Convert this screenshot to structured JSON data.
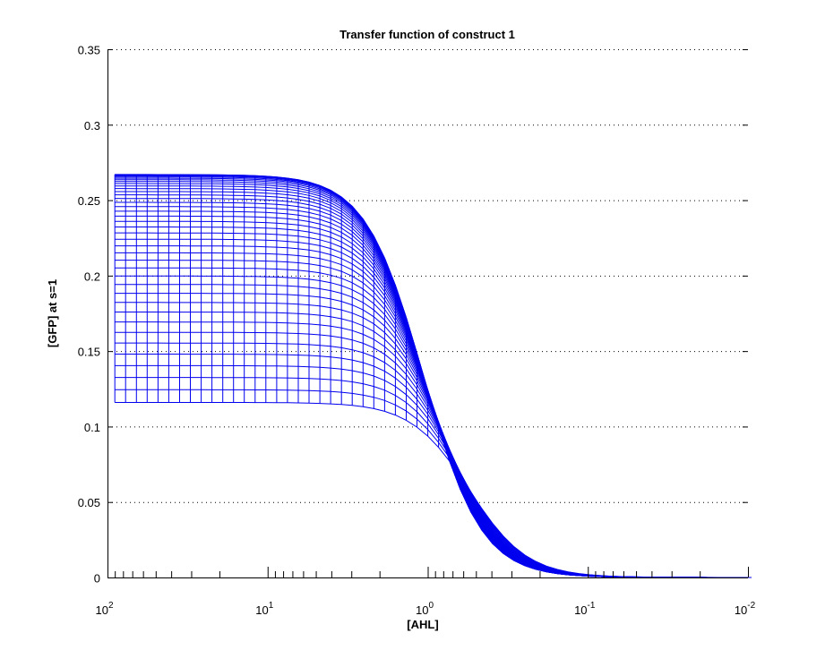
{
  "chart_data": {
    "type": "line",
    "title": "Transfer function of construct 1",
    "xlabel": "[AHL]",
    "ylabel": "[GFP] at s=1",
    "x_scale": "log",
    "x_reversed": true,
    "xlim": [
      100,
      0.01
    ],
    "ylim": [
      0,
      0.35
    ],
    "x_ticks": [
      {
        "value": 100,
        "base": "10",
        "exp": "2"
      },
      {
        "value": 10,
        "base": "10",
        "exp": "1"
      },
      {
        "value": 1,
        "base": "10",
        "exp": "0"
      },
      {
        "value": 0.1,
        "base": "10",
        "exp": "-1"
      },
      {
        "value": 0.01,
        "base": "10",
        "exp": "-2"
      }
    ],
    "y_ticks": [
      "0",
      "0.05",
      "0.1",
      "0.15",
      "0.2",
      "0.25",
      "0.3",
      "0.35"
    ],
    "y_tick_values": [
      0,
      0.05,
      0.1,
      0.15,
      0.2,
      0.25,
      0.3,
      0.35
    ],
    "grid": "y-dotted",
    "mesh": {
      "description": "family of transfer-function curves forming a mesh surface viewed from the side",
      "n_curves": 40,
      "plateau_min": 0.116,
      "plateau_max": 0.267,
      "x_start": 90,
      "x_end": 0.0095,
      "curves_sampled_plateau": [
        0.116,
        0.125,
        0.138,
        0.152,
        0.166,
        0.18,
        0.192,
        0.203,
        0.213,
        0.222,
        0.23,
        0.237,
        0.243,
        0.248,
        0.252,
        0.256,
        0.259,
        0.262,
        0.264,
        0.267
      ]
    },
    "colors": {
      "mesh_color": "#0000ee",
      "axis_color": "#000000",
      "grid_color": "#000000"
    }
  }
}
